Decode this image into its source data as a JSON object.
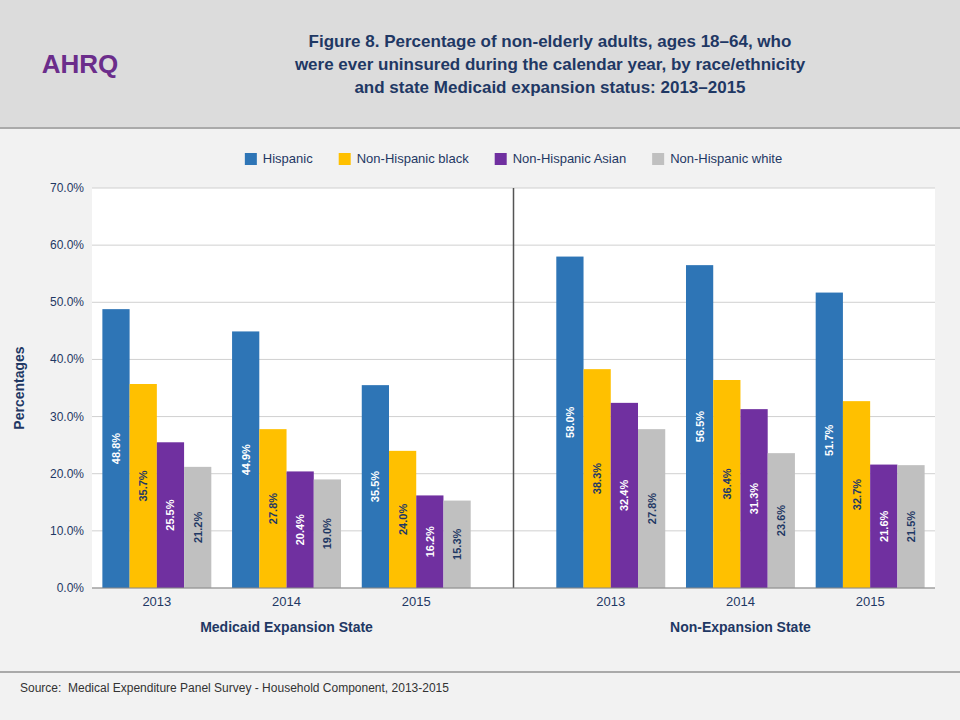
{
  "chart_data": {
    "type": "bar",
    "title": "Figure 8. Percentage of non-elderly adults, ages 18–64, who\nwere ever uninsured during the calendar year, by race/ethnicity\nand state Medicaid expansion status: 2013–2015",
    "ylabel": "Percentages",
    "xlabel": [
      "Medicaid Expansion State",
      "Non-Expansion State"
    ],
    "annotations": [
      "AHRQ",
      "Source:  Medical Expenditure Panel Survey - Household Component, 2013-2015"
    ],
    "categories": [
      "2013",
      "2014",
      "2015",
      "2013",
      "2014",
      "2015"
    ],
    "series": [
      {
        "name": "Hispanic",
        "color": "#2E75B6",
        "values": [
          48.8,
          44.9,
          35.5,
          58.0,
          56.5,
          51.7
        ],
        "value_labels": [
          "48.8%",
          "44.9%",
          "35.5%",
          "58.0%",
          "56.5%",
          "51.7%"
        ]
      },
      {
        "name": "Non-Hispanic black",
        "color": "#FFC000",
        "values": [
          35.7,
          27.8,
          24.0,
          38.3,
          36.4,
          32.7
        ],
        "value_labels": [
          "35.7%",
          "27.8%",
          "24.0%",
          "38.3%",
          "36.4%",
          "32.7%"
        ]
      },
      {
        "name": "Non-Hispanic Asian",
        "color": "#7030A0",
        "values": [
          25.5,
          20.4,
          16.2,
          32.4,
          31.3,
          21.6
        ],
        "value_labels": [
          "25.5%",
          "20.4%",
          "16.2%",
          "32.4%",
          "31.3%",
          "21.6%"
        ]
      },
      {
        "name": "Non-Hispanic white",
        "color": "#C0C0C0",
        "values": [
          21.2,
          19.0,
          15.3,
          27.8,
          23.6,
          21.5
        ],
        "value_labels": [
          "21.2%",
          "19.0%",
          "15.3%",
          "27.8%",
          "23.6%",
          "21.5%"
        ]
      }
    ],
    "ylim": [
      0,
      70
    ],
    "yticks": [
      {
        "value": 0,
        "label": "0.0%"
      },
      {
        "value": 10,
        "label": "10.0%"
      },
      {
        "value": 20,
        "label": "20.0%"
      },
      {
        "value": 30,
        "label": "30.0%"
      },
      {
        "value": 40,
        "label": "40.0%"
      },
      {
        "value": 50,
        "label": "50.0%"
      },
      {
        "value": 60,
        "label": "60.0%"
      },
      {
        "value": 70,
        "label": "70.0%"
      }
    ],
    "grid": true,
    "legend": "top",
    "data_labels": true
  }
}
